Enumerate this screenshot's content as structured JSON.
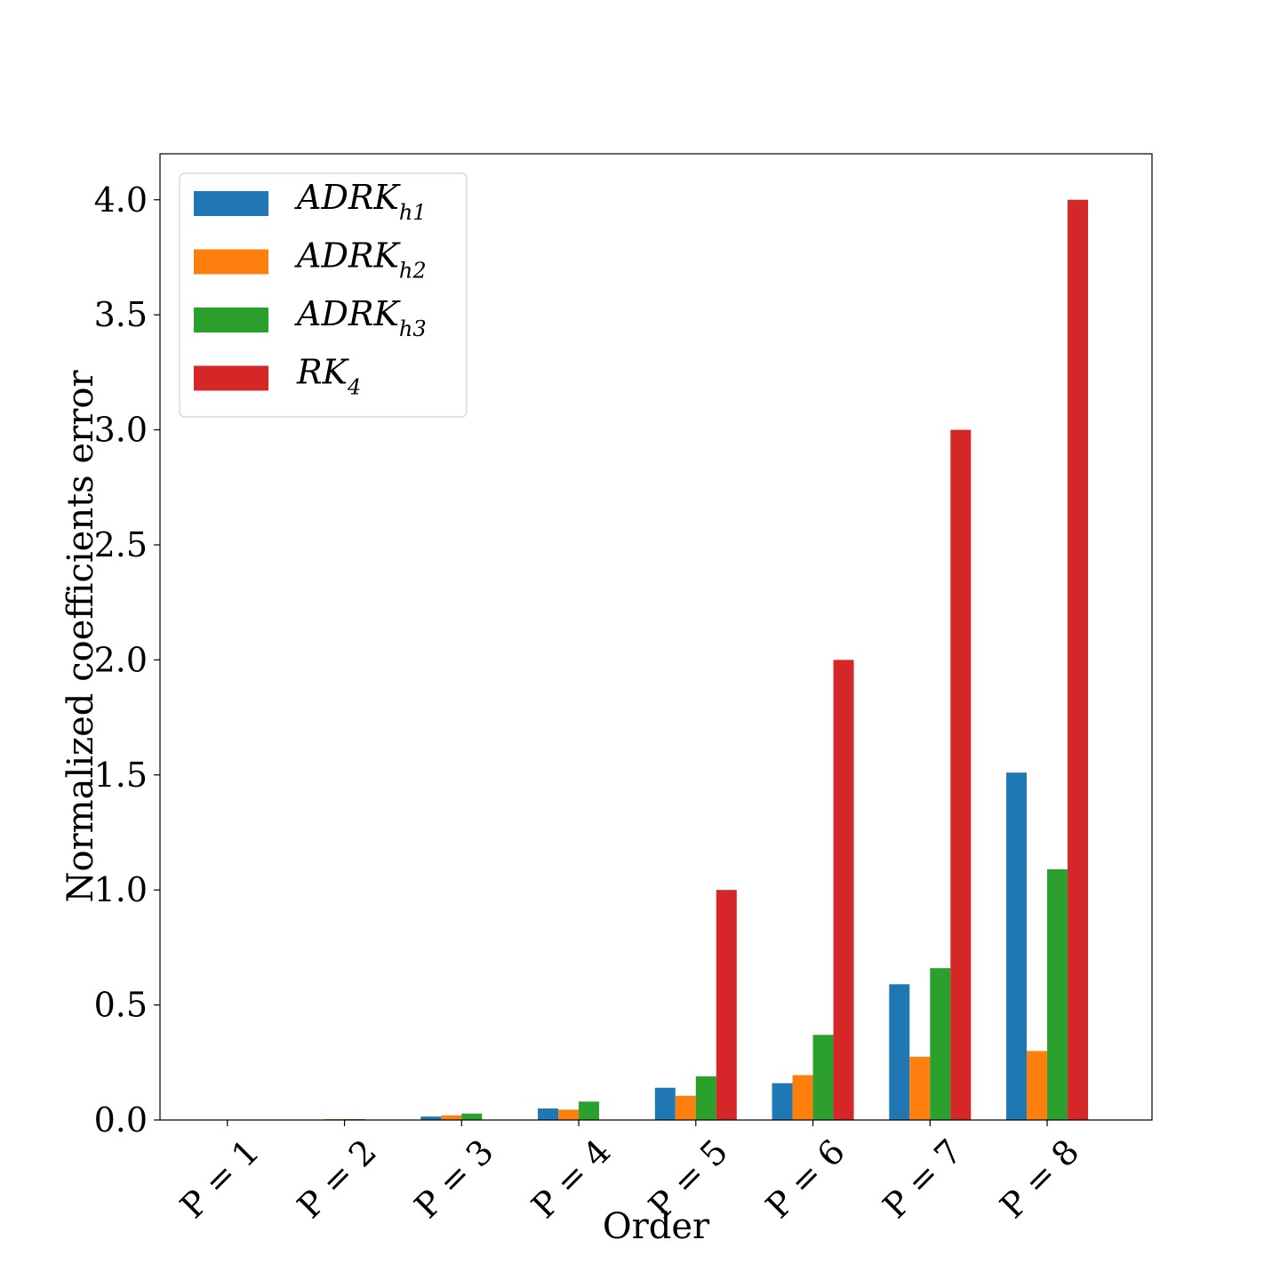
{
  "chart_data": {
    "type": "bar",
    "xlabel": "Order",
    "ylabel": "Normalized coefficients error",
    "categories": [
      "P = 1",
      "P = 2",
      "P = 3",
      "P = 4",
      "P = 5",
      "P = 6",
      "P = 7",
      "P = 8"
    ],
    "ylim": [
      0,
      4.2
    ],
    "yticks": [
      "0.0",
      "0.5",
      "1.0",
      "1.5",
      "2.0",
      "2.5",
      "3.0",
      "3.5",
      "4.0"
    ],
    "legend_position": "top-left",
    "grid": false,
    "series": [
      {
        "name": "ADRK",
        "subscript": "h1",
        "color": "#1f77b4",
        "values": [
          0.0,
          0.002,
          0.015,
          0.05,
          0.14,
          0.16,
          0.59,
          1.51
        ]
      },
      {
        "name": "ADRK",
        "subscript": "h2",
        "color": "#ff7f0e",
        "values": [
          0.0,
          0.004,
          0.02,
          0.045,
          0.105,
          0.195,
          0.275,
          0.3
        ]
      },
      {
        "name": "ADRK",
        "subscript": "h3",
        "color": "#2ca02c",
        "values": [
          0.0,
          0.004,
          0.028,
          0.08,
          0.19,
          0.37,
          0.66,
          1.09
        ]
      },
      {
        "name": "RK",
        "subscript": "4",
        "color": "#d62728",
        "values": [
          0.0,
          0.0,
          0.0,
          0.0,
          1.0,
          2.0,
          3.0,
          4.0
        ]
      }
    ]
  }
}
